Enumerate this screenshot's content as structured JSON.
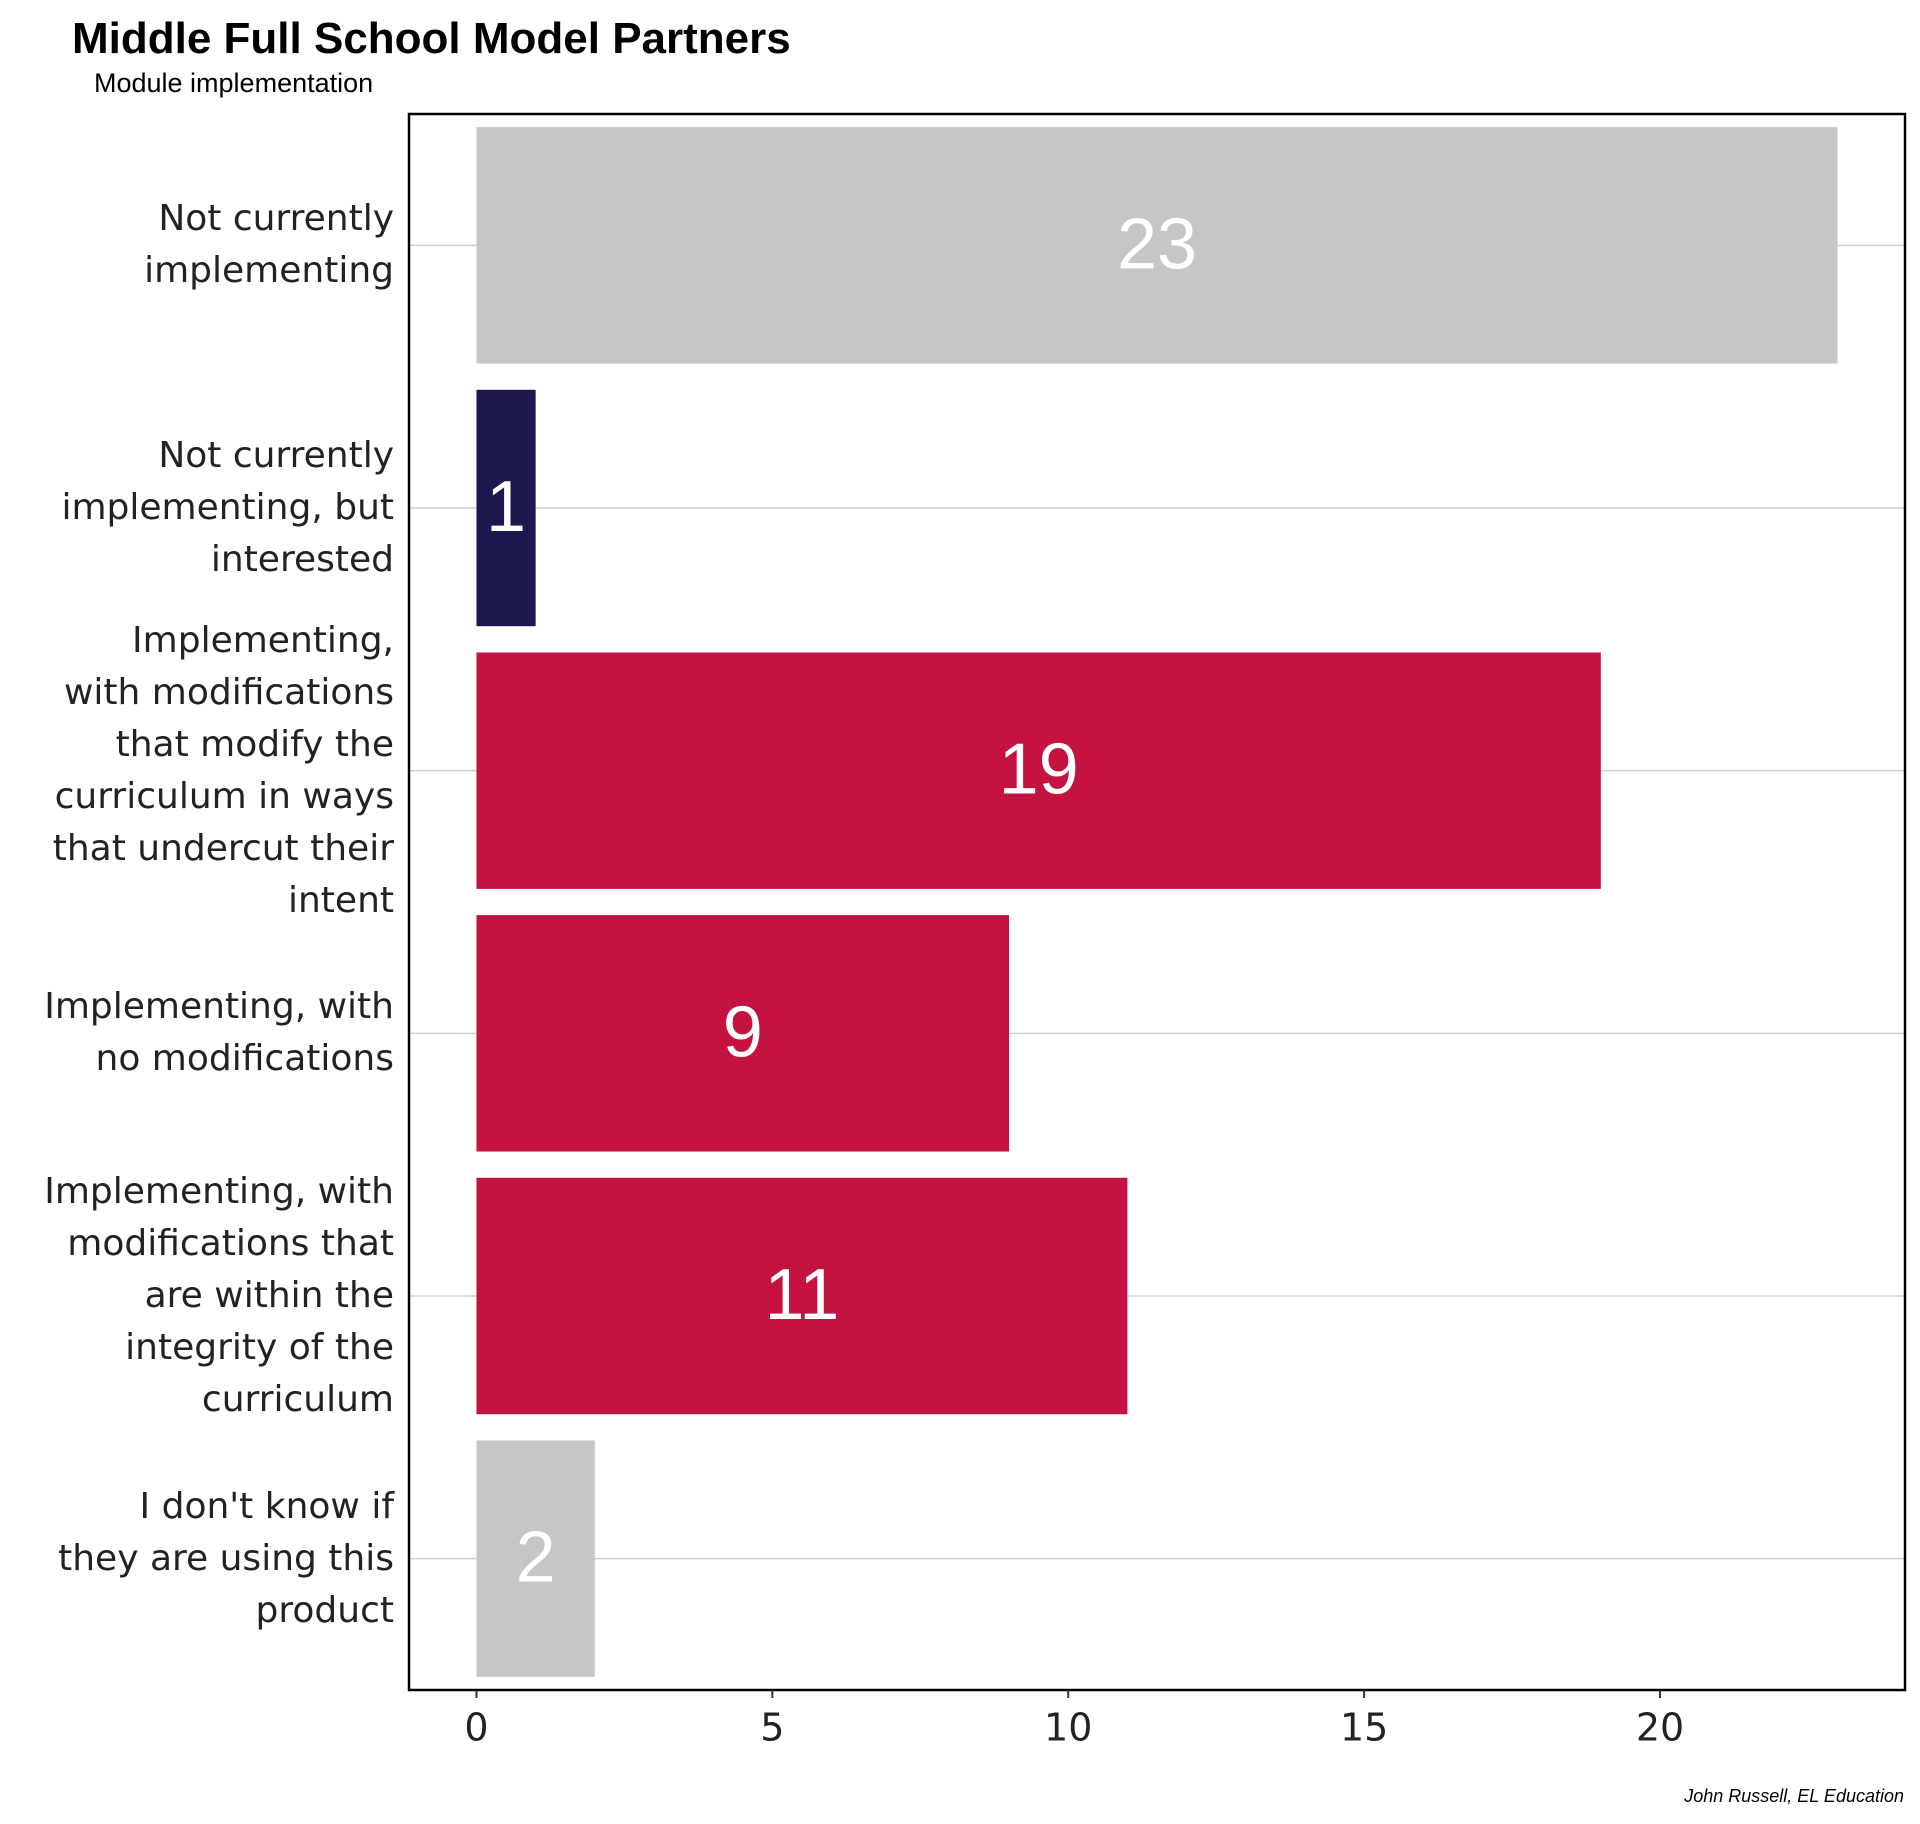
{
  "chart_data": {
    "type": "barh",
    "title": "Middle Full School Model Partners",
    "subtitle": "Module implementation",
    "caption": "John Russell, EL Education",
    "categories": [
      "Not currently\nimplementing",
      "Not currently\nimplementing, but\ninterested",
      "Implementing,\nwith modifications\nthat modify the\ncurriculum in ways\nthat undercut their\nintent",
      "Implementing, with\nno modifications",
      "Implementing, with\nmodifications that\nare within the\nintegrity of the\ncurriculum",
      "I don't know if\nthey are using this\nproduct"
    ],
    "values": [
      23,
      1,
      19,
      9,
      11,
      2
    ],
    "colors": [
      "#c6c6c6",
      "#1e1850",
      "#c41340",
      "#c41340",
      "#c41340",
      "#c6c6c6"
    ],
    "xlim": [
      -1.14,
      24.14
    ],
    "xticks": [
      0,
      5,
      10,
      15,
      20
    ],
    "grid": true
  }
}
